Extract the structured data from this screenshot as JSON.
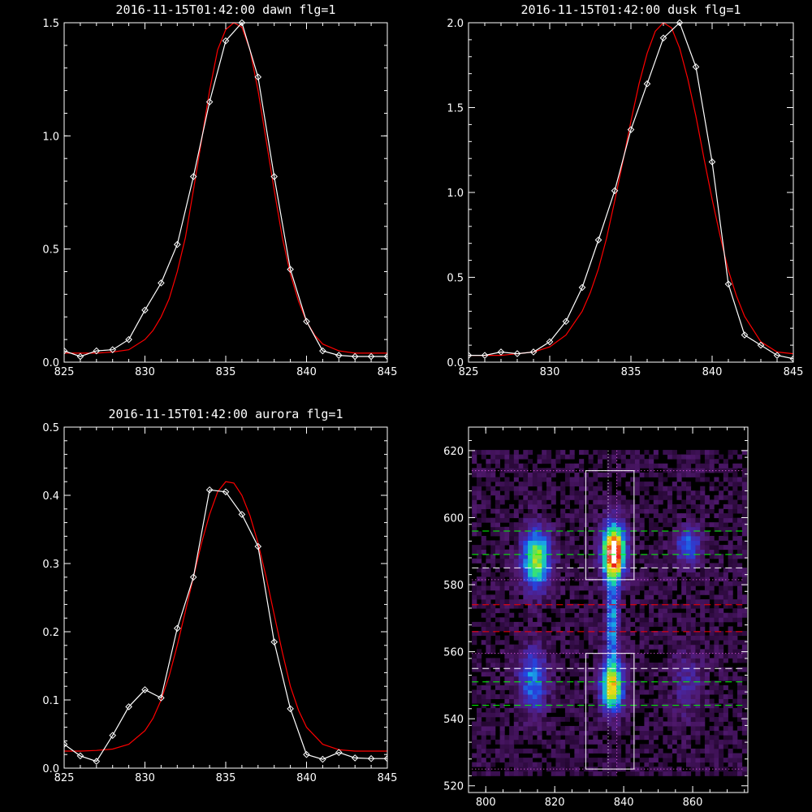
{
  "chart_data": [
    {
      "type": "line",
      "title": "2016-11-15T01:42:00 dawn flg=1",
      "xlim": [
        825,
        845
      ],
      "ylim": [
        0,
        1.5
      ],
      "xticks": [
        825,
        830,
        835,
        840,
        845
      ],
      "xtick_labels": [
        "825",
        "830",
        "835",
        "840",
        "845"
      ],
      "yticks": [
        0,
        0.5,
        1.0,
        1.5
      ],
      "ytick_labels": [
        "0.0",
        "0.5",
        "1.0",
        "1.5"
      ],
      "series": [
        {
          "color": "#ffffff",
          "markers": "diamond",
          "x": [
            825,
            826,
            827,
            828,
            829,
            830,
            831,
            832,
            833,
            834,
            835,
            836,
            837,
            838,
            839,
            840,
            841,
            842,
            843,
            844,
            845
          ],
          "y": [
            0.05,
            0.025,
            0.05,
            0.055,
            0.1,
            0.23,
            0.35,
            0.52,
            0.82,
            1.15,
            1.42,
            1.5,
            1.26,
            0.82,
            0.41,
            0.18,
            0.05,
            0.03,
            0.025,
            0.025,
            0.025
          ]
        },
        {
          "color": "#ff0000",
          "fit": "gaussian",
          "x": [
            825,
            826,
            827,
            828,
            829,
            830,
            830.5,
            831,
            831.5,
            832,
            832.5,
            833,
            833.5,
            834,
            834.5,
            835,
            835.5,
            836,
            836.5,
            837,
            837.5,
            838,
            838.5,
            839,
            839.5,
            840,
            840.5,
            841,
            842,
            843,
            844,
            845
          ],
          "y": [
            0.04,
            0.04,
            0.04,
            0.045,
            0.055,
            0.1,
            0.14,
            0.2,
            0.28,
            0.4,
            0.55,
            0.76,
            0.98,
            1.2,
            1.38,
            1.47,
            1.5,
            1.48,
            1.38,
            1.2,
            0.98,
            0.76,
            0.55,
            0.39,
            0.27,
            0.18,
            0.12,
            0.08,
            0.05,
            0.04,
            0.04,
            0.04
          ]
        }
      ]
    },
    {
      "type": "line",
      "title": "2016-11-15T01:42:00 dusk flg=1",
      "xlim": [
        825,
        845
      ],
      "ylim": [
        0,
        2.0
      ],
      "xticks": [
        825,
        830,
        835,
        840,
        845
      ],
      "xtick_labels": [
        "825",
        "830",
        "835",
        "840",
        "845"
      ],
      "yticks": [
        0,
        0.5,
        1.0,
        1.5,
        2.0
      ],
      "ytick_labels": [
        "0.0",
        "0.5",
        "1.0",
        "1.5",
        "2.0"
      ],
      "series": [
        {
          "color": "#ffffff",
          "markers": "diamond",
          "x": [
            825,
            826,
            827,
            828,
            829,
            830,
            831,
            832,
            833,
            834,
            835,
            836,
            837,
            838,
            839,
            840,
            841,
            842,
            843,
            844,
            845
          ],
          "y": [
            0.04,
            0.04,
            0.06,
            0.05,
            0.06,
            0.12,
            0.24,
            0.44,
            0.72,
            1.01,
            1.37,
            1.64,
            1.91,
            2.0,
            1.74,
            1.18,
            0.46,
            0.16,
            0.1,
            0.04,
            0.02
          ]
        },
        {
          "color": "#ff0000",
          "fit": "gaussian",
          "x": [
            825,
            826,
            827,
            828,
            829,
            830,
            831,
            832,
            832.5,
            833,
            833.5,
            834,
            834.5,
            835,
            835.5,
            836,
            836.5,
            837,
            837.5,
            838,
            838.5,
            839,
            839.5,
            840,
            840.5,
            841,
            841.5,
            842,
            843,
            844,
            845
          ],
          "y": [
            0.04,
            0.04,
            0.04,
            0.05,
            0.06,
            0.09,
            0.16,
            0.3,
            0.41,
            0.55,
            0.73,
            0.95,
            1.18,
            1.42,
            1.64,
            1.82,
            1.95,
            2.0,
            1.97,
            1.85,
            1.67,
            1.45,
            1.2,
            0.96,
            0.74,
            0.54,
            0.39,
            0.27,
            0.12,
            0.06,
            0.05
          ]
        }
      ]
    },
    {
      "type": "line",
      "title": "2016-11-15T01:42:00 aurora flg=1",
      "xlim": [
        825,
        845
      ],
      "ylim": [
        0,
        0.5
      ],
      "xticks": [
        825,
        830,
        835,
        840,
        845
      ],
      "xtick_labels": [
        "825",
        "830",
        "835",
        "840",
        "845"
      ],
      "yticks": [
        0,
        0.1,
        0.2,
        0.3,
        0.4,
        0.5
      ],
      "ytick_labels": [
        "0.0",
        "0.1",
        "0.2",
        "0.3",
        "0.4",
        "0.5"
      ],
      "series": [
        {
          "color": "#ffffff",
          "markers": "diamond",
          "x": [
            825,
            826,
            827,
            828,
            829,
            830,
            831,
            832,
            833,
            834,
            835,
            836,
            837,
            838,
            839,
            840,
            841,
            842,
            843,
            844,
            845
          ],
          "y": [
            0.035,
            0.018,
            0.01,
            0.048,
            0.09,
            0.115,
            0.103,
            0.205,
            0.28,
            0.408,
            0.405,
            0.372,
            0.325,
            0.185,
            0.087,
            0.02,
            0.013,
            0.023,
            0.015,
            0.014,
            0.014
          ]
        },
        {
          "color": "#ff0000",
          "fit": "gaussian",
          "x": [
            825,
            826,
            827,
            828,
            829,
            830,
            830.5,
            831,
            831.5,
            832,
            832.5,
            833,
            833.5,
            834,
            834.5,
            835,
            835.5,
            836,
            836.5,
            837,
            837.5,
            838,
            838.5,
            839,
            839.5,
            840,
            841,
            842,
            843,
            844,
            845
          ],
          "y": [
            0.025,
            0.025,
            0.026,
            0.028,
            0.035,
            0.055,
            0.073,
            0.1,
            0.135,
            0.18,
            0.23,
            0.28,
            0.33,
            0.372,
            0.405,
            0.42,
            0.418,
            0.4,
            0.37,
            0.33,
            0.28,
            0.225,
            0.17,
            0.12,
            0.085,
            0.06,
            0.035,
            0.027,
            0.025,
            0.025,
            0.025
          ]
        }
      ]
    },
    {
      "type": "heatmap",
      "xlim": [
        795,
        876
      ],
      "ylim": [
        518,
        627
      ],
      "xticks": [
        800,
        820,
        840,
        860
      ],
      "xtick_labels": [
        "800",
        "820",
        "840",
        "860"
      ],
      "yticks": [
        520,
        540,
        560,
        580,
        600,
        620
      ],
      "ytick_labels": [
        "520",
        "540",
        "560",
        "580",
        "600",
        "620"
      ],
      "colormap": [
        "#000000",
        "#3a0f4a",
        "#5a1a7a",
        "#3f2fa0",
        "#2244dd",
        "#19b7e6",
        "#22e08a",
        "#b6e21e",
        "#f2d81a",
        "#f07a18",
        "#ee1111",
        "#ffffff"
      ],
      "blobs": [
        {
          "x": 836.5,
          "y": 589,
          "sx": 2.2,
          "sy": 5.5,
          "amp": 1.0
        },
        {
          "x": 836,
          "y": 549,
          "sx": 2.2,
          "sy": 5.0,
          "amp": 0.7
        },
        {
          "x": 836,
          "y": 568,
          "sx": 1.2,
          "sy": 9.0,
          "amp": 0.38
        },
        {
          "x": 814,
          "y": 587,
          "sx": 2.8,
          "sy": 6.0,
          "amp": 0.58
        },
        {
          "x": 813,
          "y": 551,
          "sx": 2.8,
          "sy": 6.5,
          "amp": 0.33
        },
        {
          "x": 858,
          "y": 591,
          "sx": 2.5,
          "sy": 3.5,
          "amp": 0.32
        },
        {
          "x": 858,
          "y": 550,
          "sx": 3.0,
          "sy": 7.0,
          "amp": 0.14
        }
      ],
      "boxes": [
        {
          "x0": 829,
          "x1": 843,
          "y0": 581.5,
          "y1": 614,
          "color": "#ffffff"
        },
        {
          "x0": 829,
          "x1": 843,
          "y0": 525,
          "y1": 559.5,
          "color": "#ffffff"
        }
      ],
      "vlines": [
        {
          "x": 835.5,
          "color": "#ffffff",
          "style": "dotted"
        },
        {
          "x": 838,
          "color": "#ff66ff",
          "style": "dotted"
        }
      ],
      "hlines": [
        {
          "y": 614,
          "color": "#ff66ff",
          "style": "dotted"
        },
        {
          "y": 596,
          "color": "#00ff00",
          "style": "dashed"
        },
        {
          "y": 589,
          "color": "#00ff00",
          "style": "dashed"
        },
        {
          "y": 585,
          "color": "#ffffff",
          "style": "dashed"
        },
        {
          "y": 581.5,
          "color": "#ff66ff",
          "style": "dotted"
        },
        {
          "y": 574,
          "color": "#ff0000",
          "style": "dashed"
        },
        {
          "y": 566,
          "color": "#ff0000",
          "style": "dashed"
        },
        {
          "y": 559.5,
          "color": "#ff66ff",
          "style": "dotted"
        },
        {
          "y": 555,
          "color": "#ffffff",
          "style": "dashed"
        },
        {
          "y": 551,
          "color": "#00ff00",
          "style": "dashed"
        },
        {
          "y": 544,
          "color": "#00ff00",
          "style": "dashed"
        },
        {
          "y": 525,
          "color": "#ff66ff",
          "style": "dotted"
        }
      ]
    }
  ]
}
